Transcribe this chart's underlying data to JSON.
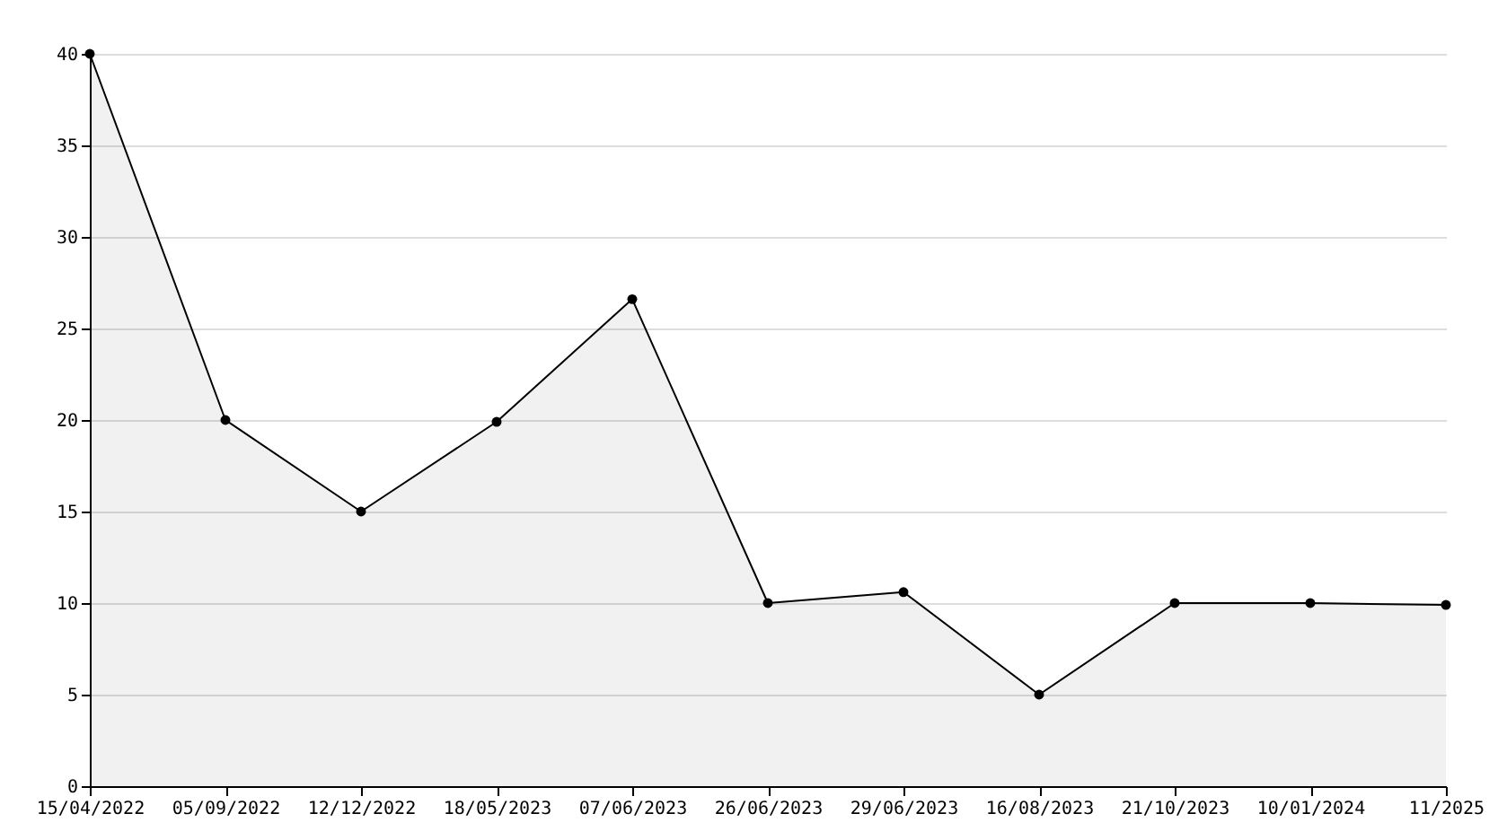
{
  "chart_data": {
    "type": "area",
    "categories": [
      "15/04/2022",
      "05/09/2022",
      "12/12/2022",
      "18/05/2023",
      "07/06/2023",
      "26/06/2023",
      "29/06/2023",
      "16/08/2023",
      "21/10/2023",
      "10/01/2024",
      "11/2025"
    ],
    "series": [
      {
        "color": "#000000",
        "values": [
          40,
          20,
          15,
          19.9,
          26.6,
          10,
          10.6,
          5,
          10,
          10,
          9.9
        ]
      }
    ],
    "ylim": [
      0,
      40
    ],
    "yticks": [
      0,
      5,
      10,
      15,
      20,
      25,
      30,
      35,
      40
    ],
    "grid": "y",
    "marker": "circle",
    "line_style": "solid"
  }
}
